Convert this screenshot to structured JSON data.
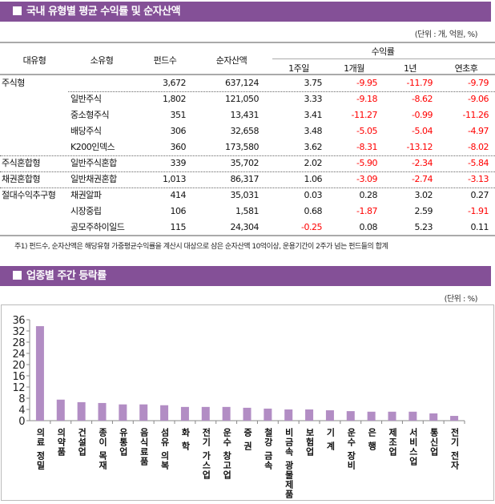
{
  "section1": {
    "title": "국내 유형별 평균 수익률 및 순자산액",
    "unit": "(단위 : 개, 억원, %)",
    "headers": {
      "major": "대유형",
      "minor": "소유형",
      "funds": "펀드수",
      "assets": "순자산액",
      "returns": "수익률",
      "w1": "1주일",
      "m1": "1개월",
      "y1": "1년",
      "ytd": "연초후"
    },
    "rows": [
      {
        "major": "주식형",
        "minor": "",
        "funds": "3,672",
        "assets": "637,124",
        "w1": "3.75",
        "m1": "-9.95",
        "y1": "-11.79",
        "ytd": "-9.79"
      },
      {
        "major": "",
        "minor": "일반주식",
        "funds": "1,802",
        "assets": "121,050",
        "w1": "3.33",
        "m1": "-9.18",
        "y1": "-8.62",
        "ytd": "-9.06"
      },
      {
        "major": "",
        "minor": "중소형주식",
        "funds": "351",
        "assets": "13,431",
        "w1": "3.41",
        "m1": "-11.27",
        "y1": "-0.99",
        "ytd": "-11.26"
      },
      {
        "major": "",
        "minor": "배당주식",
        "funds": "306",
        "assets": "32,658",
        "w1": "3.48",
        "m1": "-5.05",
        "y1": "-5.04",
        "ytd": "-4.97"
      },
      {
        "major": "",
        "minor": "K200인덱스",
        "funds": "360",
        "assets": "173,580",
        "w1": "3.62",
        "m1": "-8.31",
        "y1": "-13.12",
        "ytd": "-8.02"
      },
      {
        "major": "주식혼합형",
        "minor": "일반주식혼합",
        "funds": "339",
        "assets": "35,702",
        "w1": "2.02",
        "m1": "-5.90",
        "y1": "-2.34",
        "ytd": "-5.84"
      },
      {
        "major": "채권혼합형",
        "minor": "일반채권혼합",
        "funds": "1,013",
        "assets": "86,317",
        "w1": "1.06",
        "m1": "-3.09",
        "y1": "-2.74",
        "ytd": "-3.13"
      },
      {
        "major": "절대수익추구형",
        "minor": "채권알파",
        "funds": "414",
        "assets": "35,031",
        "w1": "0.03",
        "m1": "0.28",
        "y1": "3.02",
        "ytd": "0.27"
      },
      {
        "major": "",
        "minor": "시장중립",
        "funds": "106",
        "assets": "1,581",
        "w1": "0.68",
        "m1": "-1.87",
        "y1": "2.59",
        "ytd": "-1.91"
      },
      {
        "major": "",
        "minor": "공모주하이일드",
        "funds": "115",
        "assets": "24,304",
        "w1": "-0.25",
        "m1": "0.08",
        "y1": "5.23",
        "ytd": "0.11"
      }
    ],
    "footnote": "주1) 펀드수, 순자산액은 해당유형 가중평균수익률을 계산시 대상으로 삼은 순자산액 10억이상, 운용기간이 2주가 넘는 펀드들의 합계",
    "negative_color": "#ff0000"
  },
  "section2": {
    "title": "업종별 주간 등락률",
    "unit": "(단위 : %)"
  },
  "colors": {
    "header_bar": "#845097",
    "bar": "#b28dc4"
  },
  "chart_data": {
    "type": "bar",
    "categories": [
      "의료 정밀",
      "의약품",
      "건설업",
      "종이 목재",
      "유통업",
      "음식료품",
      "섬유 의복",
      "화 학",
      "전기 가스업",
      "운수 창고업",
      "증 권",
      "철강 금속",
      "비금속 광물제품",
      "보험업",
      "기 계",
      "운수 장비",
      "은 행",
      "제조업",
      "서비스업",
      "통신업",
      "전기 전자"
    ],
    "values": [
      33.7,
      7.5,
      6.6,
      6.3,
      5.8,
      5.8,
      5.5,
      4.9,
      4.9,
      4.9,
      4.6,
      4.3,
      4.0,
      4.0,
      3.7,
      3.4,
      3.2,
      3.2,
      3.2,
      2.6,
      1.7
    ],
    "yticks": [
      0,
      4,
      8,
      12,
      16,
      20,
      24,
      28,
      32,
      36
    ],
    "ylim": [
      0,
      36
    ],
    "grid": false,
    "legend": "none"
  }
}
